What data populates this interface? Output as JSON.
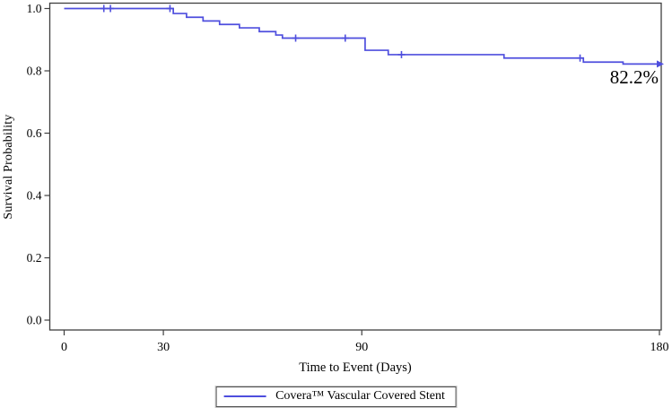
{
  "figure": {
    "y_axis_title": "Survival Probability",
    "x_axis_title": "Time to Event (Days)",
    "annotation": "82.2%",
    "legend": {
      "label": "Covera™ Vascular Covered Stent"
    }
  },
  "colors": {
    "line": "#4e4ede",
    "axis": "#3f3f3f",
    "text": "#000000",
    "background": "#ffffff"
  },
  "chart_data": {
    "type": "line",
    "subtype": "kaplan-meier-step-curve",
    "title": "",
    "xlabel": "Time to Event (Days)",
    "ylabel": "Survival Probability",
    "xlim": [
      0,
      180
    ],
    "ylim": [
      0.0,
      1.0
    ],
    "x_ticks": [
      0,
      30,
      90,
      180
    ],
    "y_ticks": [
      1.0,
      0.8,
      0.6,
      0.4,
      0.2,
      0.0
    ],
    "grid": false,
    "frame": true,
    "legend_position": "bottom-center",
    "series": [
      {
        "name": "Covera™ Vascular Covered Stent",
        "color": "#4e4ede",
        "steps": [
          [
            0,
            1.0
          ],
          [
            33,
            0.984
          ],
          [
            37,
            0.972
          ],
          [
            42,
            0.96
          ],
          [
            47,
            0.949
          ],
          [
            53,
            0.938
          ],
          [
            59,
            0.926
          ],
          [
            64,
            0.915
          ],
          [
            66,
            0.905
          ],
          [
            91,
            0.866
          ],
          [
            98,
            0.852
          ],
          [
            133,
            0.841
          ],
          [
            157,
            0.828
          ],
          [
            169,
            0.822
          ],
          [
            180,
            0.822
          ]
        ],
        "censor_marks": [
          [
            12,
            1.0
          ],
          [
            14,
            1.0
          ],
          [
            32,
            1.0
          ],
          [
            70,
            0.905
          ],
          [
            85,
            0.905
          ],
          [
            102,
            0.852
          ],
          [
            156,
            0.841
          ]
        ],
        "end_marker": {
          "type": "arrow-right",
          "x": 180,
          "y": 0.822
        },
        "final_survival_label": "82.2%"
      }
    ]
  }
}
